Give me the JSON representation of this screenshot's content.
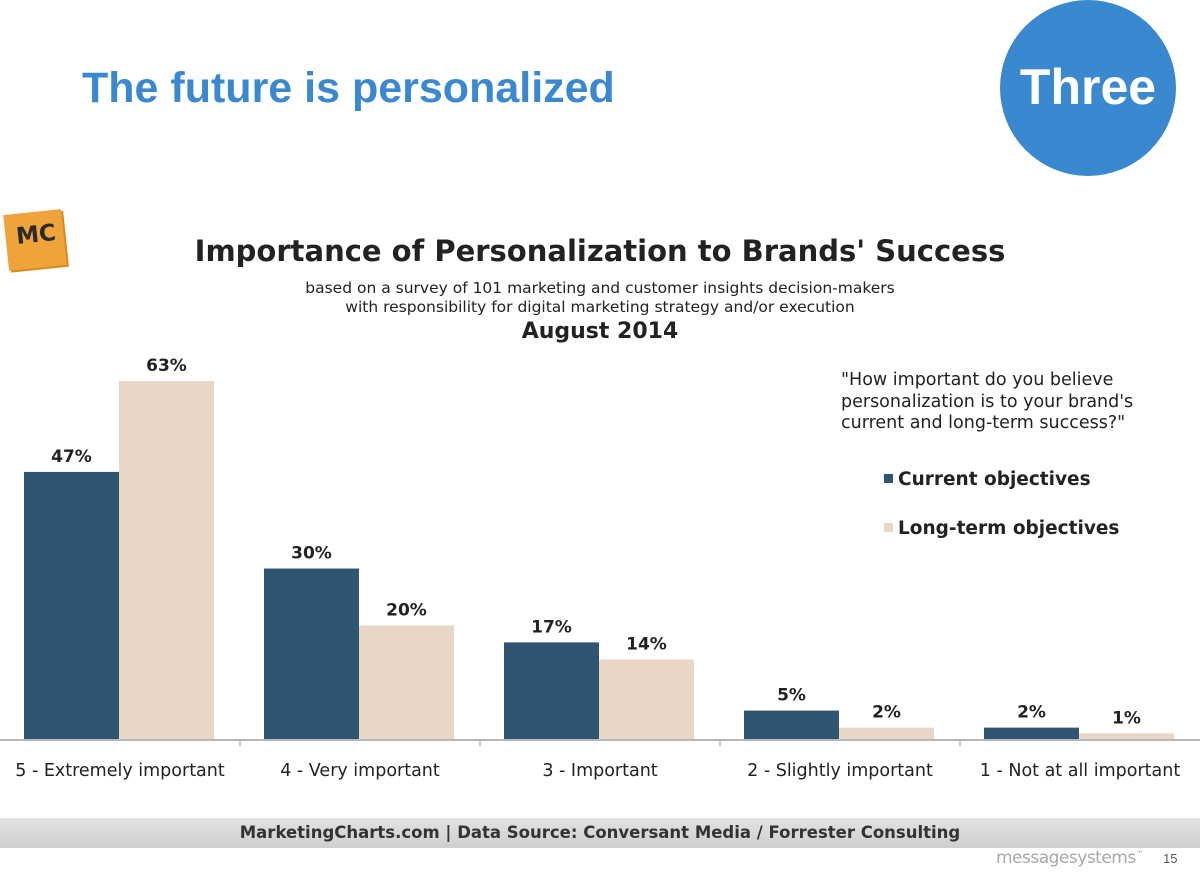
{
  "slide": {
    "title": "The future is personalized",
    "badge": "Three",
    "page_number": "15",
    "brand": "messagesystems",
    "mc_logo": "MC"
  },
  "colors": {
    "title_blue": "#3a88cf",
    "current": "#2f5573",
    "long_term": "#e8d7c6"
  },
  "chart_data": {
    "type": "bar",
    "title": "Importance of Personalization to Brands' Success",
    "subtitle_lines": [
      "based on a survey of 101 marketing and customer insights decision-makers",
      "with responsibility for digital marketing strategy and/or execution"
    ],
    "date": "August 2014",
    "question": "\"How important do you believe personalization is to your brand's current and long-term success?\"",
    "categories": [
      "5 - Extremely important",
      "4 - Very important",
      "3 - Important",
      "2 - Slightly important",
      "1 - Not at all important"
    ],
    "series": [
      {
        "name": "Current objectives",
        "values": [
          47,
          30,
          17,
          5,
          2
        ]
      },
      {
        "name": "Long-term objectives",
        "values": [
          63,
          20,
          14,
          2,
          1
        ]
      }
    ],
    "ylim": [
      0,
      63
    ],
    "legend_position": "right",
    "grid": false,
    "source": "MarketingCharts.com | Data Source: Conversant Media / Forrester Consulting"
  }
}
